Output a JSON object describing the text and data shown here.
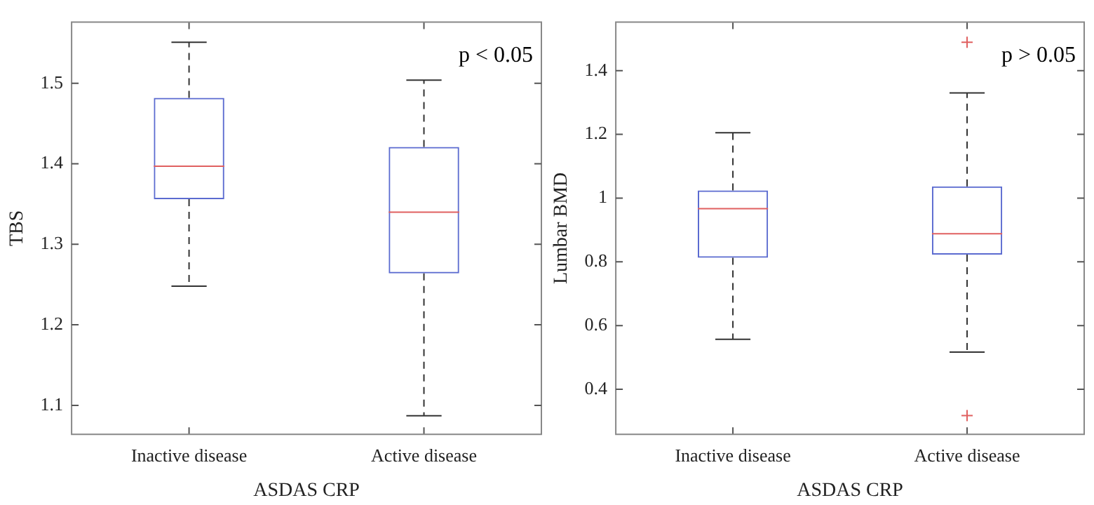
{
  "chart_data": [
    {
      "type": "box",
      "categories": [
        "Inactive disease",
        "Active disease"
      ],
      "xlabel": "ASDAS CRP",
      "ylabel": "TBS",
      "ylim": [
        1.064,
        1.576
      ],
      "yticks": [
        1.1,
        1.2,
        1.3,
        1.4,
        1.5
      ],
      "grid": false,
      "legend": false,
      "color": "#5b6bd0",
      "annotations": [
        "p < 0.05"
      ],
      "boxes": [
        {
          "low": 1.248,
          "q1": 1.356,
          "median": 1.397,
          "q3": 1.482,
          "high": 1.551
        },
        {
          "low": 1.087,
          "q1": 1.264,
          "median": 1.34,
          "q3": 1.421,
          "high": 1.504
        }
      ]
    },
    {
      "type": "box",
      "categories": [
        "Inactive disease",
        "Active disease"
      ],
      "xlabel": "ASDAS CRP",
      "ylabel": "Lumbar BMD",
      "ylim": [
        0.259,
        1.552
      ],
      "yticks": [
        0.4,
        0.6,
        0.8,
        1,
        1.2,
        1.4
      ],
      "grid": false,
      "legend": false,
      "color": "#5b6bd0",
      "marker": "cross",
      "annotations": [
        "p > 0.05"
      ],
      "boxes": [
        {
          "low": 0.557,
          "q1": 0.813,
          "median": 0.967,
          "q3": 1.024,
          "high": 1.205
        },
        {
          "low": 0.517,
          "q1": 0.823,
          "median": 0.888,
          "q3": 1.037,
          "high": 1.33,
          "outliers": [
            1.489,
            0.318
          ]
        }
      ]
    }
  ]
}
